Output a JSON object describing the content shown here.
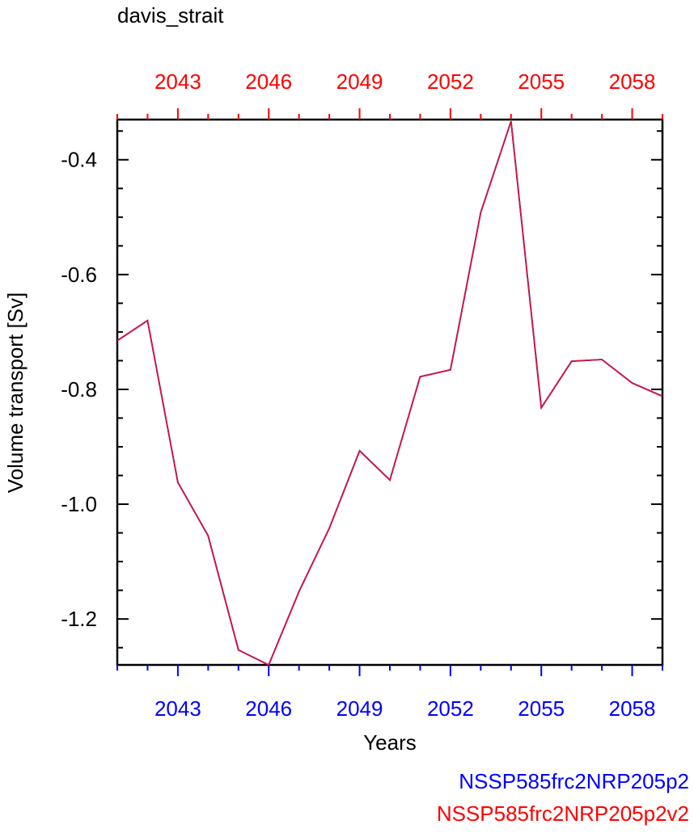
{
  "chart_data": {
    "type": "line",
    "title": "davis_strait",
    "xlabel": "Years",
    "ylabel": "Volume transport [Sv]",
    "xlim": [
      2041,
      2059
    ],
    "ylim": [
      -1.28,
      -0.33
    ],
    "x_ticks": [
      2043,
      2046,
      2049,
      2052,
      2055,
      2058
    ],
    "y_ticks": [
      -1.2,
      -1.0,
      -0.8,
      -0.6,
      -0.4
    ],
    "y_tick_labels": [
      "-1.2",
      "-1.0",
      "-0.8",
      "-0.6",
      "-0.4"
    ],
    "bottom_axis_color": "#0000ff",
    "top_axis_color": "#ff0000",
    "line_color": "#d4143c",
    "series": [
      {
        "name": "NSSP585frc2NRP205p2",
        "color": "#0000ff",
        "x": [
          2041,
          2042,
          2043,
          2044,
          2045,
          2046,
          2047,
          2048,
          2049,
          2050,
          2051,
          2052,
          2053,
          2054,
          2055,
          2056,
          2057,
          2058,
          2059
        ],
        "values": [
          -0.715,
          -0.68,
          -0.962,
          -1.055,
          -1.254,
          -1.28,
          -1.152,
          -1.042,
          -0.907,
          -0.958,
          -0.778,
          -0.766,
          -0.492,
          -0.333,
          -0.832,
          -0.751,
          -0.748,
          -0.789,
          -0.812
        ]
      },
      {
        "name": "NSSP585frc2NRP205p2v2",
        "color": "#ff0000",
        "x": [
          2041,
          2042,
          2043,
          2044,
          2045,
          2046,
          2047,
          2048,
          2049,
          2050,
          2051,
          2052,
          2053,
          2054,
          2055,
          2056,
          2057,
          2058,
          2059
        ],
        "values": [
          -0.715,
          -0.68,
          -0.962,
          -1.055,
          -1.254,
          -1.28,
          -1.152,
          -1.042,
          -0.907,
          -0.958,
          -0.778,
          -0.766,
          -0.492,
          -0.333,
          -0.832,
          -0.751,
          -0.748,
          -0.789,
          -0.812
        ]
      }
    ]
  }
}
